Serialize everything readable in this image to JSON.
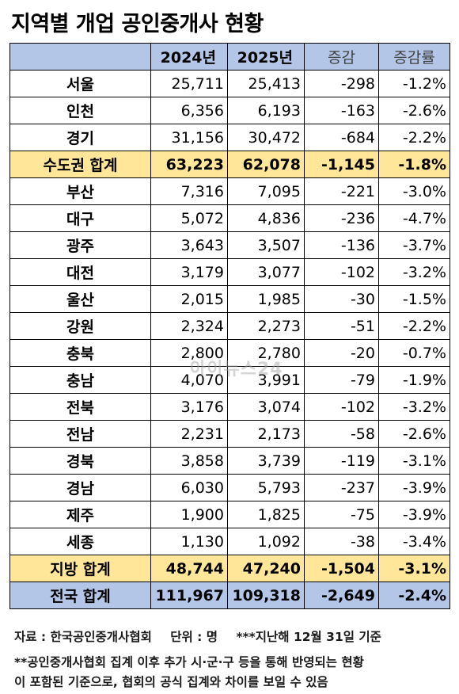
{
  "title": "지역별 개업 공인중개사 현황",
  "table": {
    "headers": [
      "",
      "2024년",
      "2025년",
      "증감",
      "증감률"
    ],
    "rows": [
      {
        "region": "서울",
        "y2024": "25,711",
        "y2025": "25,413",
        "change": "-298",
        "rate": "-1.2%"
      },
      {
        "region": "인천",
        "y2024": "6,356",
        "y2025": "6,193",
        "change": "-163",
        "rate": "-2.6%"
      },
      {
        "region": "경기",
        "y2024": "31,156",
        "y2025": "30,472",
        "change": "-684",
        "rate": "-2.2%"
      },
      {
        "region": "수도권 합계",
        "y2024": "63,223",
        "y2025": "62,078",
        "change": "-1,145",
        "rate": "-1.8%"
      },
      {
        "region": "부산",
        "y2024": "7,316",
        "y2025": "7,095",
        "change": "-221",
        "rate": "-3.0%"
      },
      {
        "region": "대구",
        "y2024": "5,072",
        "y2025": "4,836",
        "change": "-236",
        "rate": "-4.7%"
      },
      {
        "region": "광주",
        "y2024": "3,643",
        "y2025": "3,507",
        "change": "-136",
        "rate": "-3.7%"
      },
      {
        "region": "대전",
        "y2024": "3,179",
        "y2025": "3,077",
        "change": "-102",
        "rate": "-3.2%"
      },
      {
        "region": "울산",
        "y2024": "2,015",
        "y2025": "1,985",
        "change": "-30",
        "rate": "-1.5%"
      },
      {
        "region": "강원",
        "y2024": "2,324",
        "y2025": "2,273",
        "change": "-51",
        "rate": "-2.2%"
      },
      {
        "region": "충북",
        "y2024": "2,800",
        "y2025": "2,780",
        "change": "-20",
        "rate": "-0.7%"
      },
      {
        "region": "충남",
        "y2024": "4,070",
        "y2025": "3,991",
        "change": "-79",
        "rate": "-1.9%"
      },
      {
        "region": "전북",
        "y2024": "3,176",
        "y2025": "3,074",
        "change": "-102",
        "rate": "-3.2%"
      },
      {
        "region": "전남",
        "y2024": "2,231",
        "y2025": "2,173",
        "change": "-58",
        "rate": "-2.6%"
      },
      {
        "region": "경북",
        "y2024": "3,858",
        "y2025": "3,739",
        "change": "-119",
        "rate": "-3.1%"
      },
      {
        "region": "경남",
        "y2024": "6,030",
        "y2025": "5,793",
        "change": "-237",
        "rate": "-3.9%"
      },
      {
        "region": "제주",
        "y2024": "1,900",
        "y2025": "1,825",
        "change": "-75",
        "rate": "-3.9%"
      },
      {
        "region": "세종",
        "y2024": "1,130",
        "y2025": "1,092",
        "change": "-38",
        "rate": "-3.4%"
      },
      {
        "region": "지방 합계",
        "y2024": "48,744",
        "y2025": "47,240",
        "change": "-1,504",
        "rate": "-3.1%"
      },
      {
        "region": "전국 합계",
        "y2024": "111,967",
        "y2025": "109,318",
        "change": "-2,649",
        "rate": "-2.4%"
      }
    ]
  },
  "watermark": "아이뉴스24",
  "notes": {
    "source": "자료 : 한국공인중개사협회",
    "unit": "단위 : 명",
    "basis": "***지난해 12월 31일 기준",
    "footnote_line1": "**공인중개사협회 집계 이후 추가 시·군·구 등을 통해 반영되는 현황",
    "footnote_line2": "이 포함된 기준으로, 협회의 공식 집계와 차이를 보일 수 있음"
  }
}
